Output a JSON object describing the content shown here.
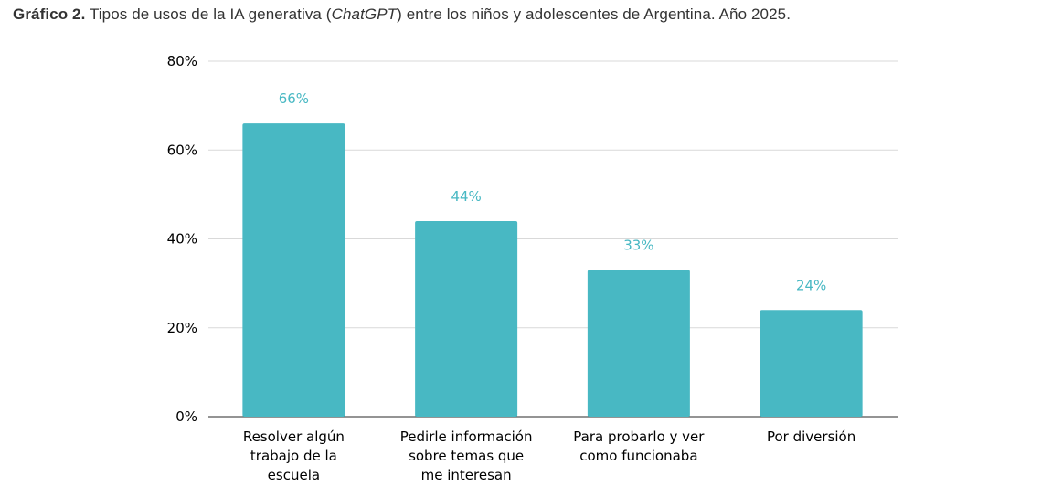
{
  "caption": {
    "lead": "Gráfico 2.",
    "text_before": " Tipos de usos de la IA generativa (",
    "italic": "ChatGPT",
    "text_after": ") entre los niños y adolescentes de Argentina. Año 2025."
  },
  "colors": {
    "bar": "#48B8C3",
    "data_label": "#48B8C3",
    "grid": "#d9d9d9",
    "axis": "#555555"
  },
  "chart_data": {
    "type": "bar",
    "title": "Tipos de usos de la IA generativa (ChatGPT) entre los niños y adolescentes de Argentina. Año 2025.",
    "xlabel": "",
    "ylabel": "",
    "ylim": [
      0,
      80
    ],
    "yticks": [
      0,
      20,
      40,
      60,
      80
    ],
    "ytick_labels": [
      "0%",
      "20%",
      "40%",
      "60%",
      "80%"
    ],
    "grid": true,
    "categories": [
      [
        "Resolver algún",
        "trabajo de la",
        "escuela"
      ],
      [
        "Pedirle información",
        "sobre temas que",
        "me interesan"
      ],
      [
        "Para probarlo y ver",
        "como funcionaba"
      ],
      [
        "Por diversión"
      ]
    ],
    "values": [
      66,
      44,
      33,
      24
    ],
    "value_labels": [
      "66%",
      "44%",
      "33%",
      "24%"
    ]
  }
}
